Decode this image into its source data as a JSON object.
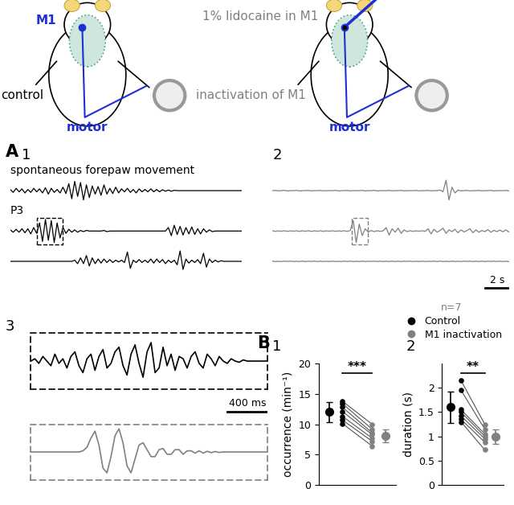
{
  "schematics": [
    {
      "region": "M1",
      "condition": "control",
      "output": "motor",
      "color": "#000000"
    },
    {
      "treatment": "1% lidocaine in M1",
      "condition": "inactivation of M1",
      "output": "motor",
      "color": "#808080"
    }
  ],
  "panel_A": {
    "label": "A",
    "panels": [
      {
        "label": "1",
        "color": "#000000",
        "sample_interval_s": 0.25,
        "traces": [
          {
            "label": "spontaneous forepaw movement",
            "values": [
              0.1,
              -0.15,
              0.2,
              -0.1,
              0.15,
              -0.2,
              0.1,
              -0.15,
              0.2,
              -0.1,
              0.15,
              -0.2,
              0.25,
              -0.3,
              0.2,
              -0.15,
              0.1,
              -0.2,
              0.3,
              -0.25,
              0.6,
              -0.7,
              0.8,
              -0.5,
              0.7,
              -0.8,
              0.5,
              -0.6,
              0.4,
              -0.3,
              0.35,
              -0.4,
              0.5,
              -0.3,
              0.2,
              -0.25,
              0.3,
              -0.2,
              0.15,
              -0.1,
              0.2,
              -0.15,
              0.1,
              -0.2,
              0.15,
              -0.1,
              0.1,
              -0.1,
              0.15,
              -0.1,
              0.1,
              -0.1,
              0.08,
              -0.05,
              0.05,
              -0.05,
              0.03,
              0,
              0,
              0,
              0,
              0,
              0,
              0,
              0,
              0,
              0,
              0,
              0,
              0,
              0,
              0,
              0,
              0,
              0,
              0,
              0,
              0,
              0,
              0
            ]
          },
          {
            "label": "P3",
            "zoom_window_s": [
              2.3,
              4.5
            ],
            "values": [
              0.1,
              -0.1,
              0.15,
              -0.1,
              0.2,
              -0.15,
              0.2,
              -0.25,
              0.3,
              -0.2,
              0.7,
              -0.9,
              1.0,
              -0.8,
              0.9,
              -1.0,
              0.7,
              -0.6,
              0.3,
              -0.2,
              0.15,
              -0.1,
              0.1,
              -0.1,
              0.05,
              -0.05,
              0.05,
              0,
              0,
              0,
              0,
              0,
              0.05,
              -0.05,
              0,
              0,
              0,
              0,
              0,
              0,
              0,
              0,
              0,
              0,
              0,
              0,
              0,
              0,
              0,
              0,
              0,
              0,
              0,
              0,
              0.3,
              -0.4,
              0.5,
              -0.3,
              0.4,
              -0.35,
              0.3,
              -0.25,
              0.35,
              -0.3,
              0.2,
              -0.25,
              0.2,
              -0.1,
              0.1,
              -0.05,
              0,
              0,
              0,
              0,
              0,
              0,
              0,
              0,
              0,
              0
            ]
          },
          {
            "values": [
              0,
              0,
              0,
              0,
              0,
              0,
              0,
              0,
              0,
              0,
              0,
              0,
              0,
              0,
              0,
              0,
              0,
              0,
              0,
              0,
              0,
              0,
              0.1,
              -0.2,
              0.3,
              -0.2,
              0.5,
              -0.4,
              0.3,
              -0.2,
              0.2,
              -0.15,
              0.2,
              -0.1,
              0.15,
              -0.1,
              0.1,
              -0.05,
              0.1,
              -0.1,
              0.8,
              -0.6,
              0.1,
              -0.1,
              0.15,
              -0.1,
              0.1,
              -0.1,
              0.2,
              -0.15,
              0.2,
              -0.1,
              0.15,
              -0.2,
              0.1,
              -0.1,
              0.1,
              -0.3,
              0.9,
              -0.7,
              0.2,
              -0.15,
              0.1,
              -0.1,
              0.15,
              -0.2,
              0.7,
              -0.5,
              0.2,
              -0.1,
              0.1,
              -0.05,
              0.05,
              0,
              0,
              0,
              0,
              0,
              0,
              0
            ]
          }
        ]
      },
      {
        "label": "2",
        "color": "#808080",
        "sample_interval_s": 0.25,
        "scale_bar": {
          "value": 2,
          "label": "2 s"
        },
        "traces": [
          {
            "values": [
              0,
              0.02,
              -0.02,
              0,
              0.02,
              -0.02,
              0,
              0,
              0.02,
              -0.02,
              0,
              0,
              0.02,
              -0.02,
              0,
              0,
              0.02,
              -0.02,
              0,
              0,
              0,
              0.02,
              -0.02,
              0,
              0,
              0.02,
              -0.02,
              0,
              0,
              0,
              0.02,
              -0.02,
              0,
              0,
              0.02,
              -0.02,
              0,
              0,
              0,
              0.02,
              -0.02,
              0,
              0,
              0.02,
              -0.02,
              0,
              0,
              0,
              0.02,
              -0.02,
              0,
              0,
              0.02,
              -0.02,
              0,
              0,
              0.05,
              -0.1,
              0.9,
              -0.8,
              0.3,
              -0.2,
              0.05,
              -0.02,
              0,
              0.02,
              -0.02,
              0,
              0,
              0.02,
              -0.02,
              0,
              0,
              0.02,
              -0.02,
              0,
              0,
              0,
              0.02,
              -0.02
            ]
          },
          {
            "zoom_window_s": [
              6.6,
              8.0
            ],
            "values": [
              0.03,
              -0.03,
              0.02,
              -0.02,
              0.03,
              -0.03,
              0.02,
              -0.02,
              0.03,
              -0.03,
              0.02,
              -0.02,
              0.03,
              -0.03,
              0.02,
              -0.02,
              0.03,
              -0.03,
              0.02,
              -0.02,
              0.03,
              -0.03,
              0.02,
              -0.02,
              0.03,
              -0.03,
              0.05,
              0.9,
              -1.0,
              0.6,
              -0.4,
              0.2,
              -0.1,
              0.05,
              -0.05,
              0.03,
              -0.03,
              0.02,
              0.3,
              -0.35,
              0.2,
              -0.1,
              0.25,
              -0.2,
              0.1,
              -0.05,
              0.03,
              -0.03,
              0.02,
              -0.02,
              0.03,
              -0.03,
              0.2,
              -0.25,
              0.15,
              -0.1,
              0.05,
              0.25,
              -0.2,
              0.1,
              -0.05,
              0.15,
              -0.15,
              0.1,
              -0.08,
              0.05,
              0.2,
              -0.15,
              0.1,
              -0.1,
              0.05,
              -0.05,
              0.12,
              -0.1,
              0.06,
              -0.05,
              0.08,
              -0.06,
              0.1,
              -0.08
            ]
          },
          {
            "values": [
              0.02,
              -0.02,
              0.01,
              -0.02,
              0.02,
              -0.01,
              0.02,
              -0.02,
              0.01,
              -0.02,
              0.02,
              -0.02,
              0.01,
              -0.01,
              0.02,
              -0.02,
              0.02,
              -0.02,
              0.01,
              -0.02,
              0.02,
              -0.02,
              0.01,
              -0.02,
              0.02,
              -0.01,
              0.02,
              -0.02,
              0.01,
              -0.02,
              0.02,
              -0.02,
              0.01,
              -0.01,
              0.02,
              -0.02,
              0.02,
              -0.02,
              0.01,
              -0.02,
              0.02,
              -0.02,
              0.01,
              -0.02,
              0.02,
              -0.01,
              0.02,
              -0.02,
              0.01,
              -0.02,
              0.02,
              -0.02,
              0.01,
              -0.01,
              0.02,
              -0.02,
              0.02,
              -0.02,
              0.01,
              -0.02,
              0.02,
              -0.02,
              0.01,
              -0.02,
              0.02,
              -0.01,
              0.02,
              -0.02,
              0.01,
              -0.02,
              0.02,
              -0.02,
              0.01,
              -0.01,
              0.02,
              -0.02,
              0.02,
              -0.02,
              0.01,
              -0.02
            ]
          }
        ]
      },
      {
        "label": "3",
        "sample_interval_s": 0.04,
        "scale_bar": {
          "value": 0.4,
          "label": "400 ms"
        },
        "traces": [
          {
            "color": "#000000",
            "values": [
              0,
              0.1,
              -0.1,
              0.2,
              0,
              -0.2,
              0.3,
              -0.1,
              0.1,
              -0.3,
              0.2,
              0.4,
              -0.2,
              -0.5,
              0.1,
              0.3,
              -0.4,
              0.2,
              0.5,
              -0.3,
              -0.1,
              0.4,
              0.6,
              -0.2,
              -0.6,
              0.3,
              0.7,
              -0.1,
              -0.7,
              0.4,
              0.8,
              -0.5,
              -0.3,
              0.6,
              -0.2,
              0.3,
              -0.4,
              0.2,
              0.1,
              -0.3,
              0.2,
              0.4,
              -0.1,
              -0.3,
              0.3,
              0.1,
              -0.2,
              0.2,
              0,
              -0.1,
              0.1,
              0,
              -0.05,
              0.05,
              0,
              0,
              0,
              0,
              0,
              0
            ]
          },
          {
            "color": "#808080",
            "values": [
              0,
              0,
              0,
              0,
              0,
              0,
              0,
              0,
              0,
              0,
              0,
              0,
              0,
              0.05,
              0.2,
              0.6,
              0.9,
              0.3,
              -0.7,
              -0.9,
              -0.2,
              0.7,
              1.0,
              0.4,
              -0.6,
              -0.9,
              -0.3,
              0.3,
              0.4,
              0.1,
              -0.2,
              -0.2,
              0.1,
              0.15,
              -0.1,
              -0.1,
              0.1,
              0.1,
              -0.1,
              0.05,
              0.05,
              -0.05,
              0.05,
              -0.05,
              0.03,
              -0.03,
              0.02,
              -0.02,
              0,
              0,
              0,
              0,
              0,
              0,
              0,
              0,
              0,
              0,
              0,
              0
            ]
          }
        ]
      }
    ]
  },
  "panel_B_label": "B",
  "chart_data": [
    {
      "type": "scatter",
      "label": "1",
      "ylabel": "occurrence (min⁻¹)",
      "ylim": [
        0,
        20
      ],
      "yticks": [
        0,
        5,
        10,
        15,
        20
      ],
      "grid": false,
      "tick_labels": "y",
      "significance": "***",
      "series": [
        {
          "name": "Control",
          "color": "#000000",
          "values": [
            13.8,
            13.4,
            12.8,
            12.1,
            11.3,
            10.7,
            10.1
          ],
          "mean": 12,
          "error": 1.6
        },
        {
          "name": "M1 inactivation",
          "color": "#808080",
          "values": [
            10.0,
            9.2,
            8.6,
            8.3,
            7.7,
            7.2,
            6.4
          ],
          "mean": 8.1,
          "error": 1.1
        }
      ]
    },
    {
      "type": "scatter",
      "label": "2",
      "ylabel": "duration (s)",
      "ylim": [
        0,
        2.5
      ],
      "yticks": [
        0,
        0.5,
        1,
        1.5,
        2
      ],
      "grid": false,
      "tick_labels": "y",
      "significance": "**",
      "legend": "upper right",
      "legend_title": "n=7",
      "series": [
        {
          "name": "Control",
          "color": "#000000",
          "values": [
            2.15,
            1.95,
            1.55,
            1.5,
            1.42,
            1.35,
            1.3
          ],
          "mean": 1.6,
          "error": 0.32
        },
        {
          "name": "M1 inactivation",
          "color": "#808080",
          "values": [
            1.25,
            1.15,
            1.05,
            1.0,
            0.95,
            0.88,
            0.72
          ],
          "mean": 1.0,
          "error": 0.15
        }
      ]
    }
  ]
}
